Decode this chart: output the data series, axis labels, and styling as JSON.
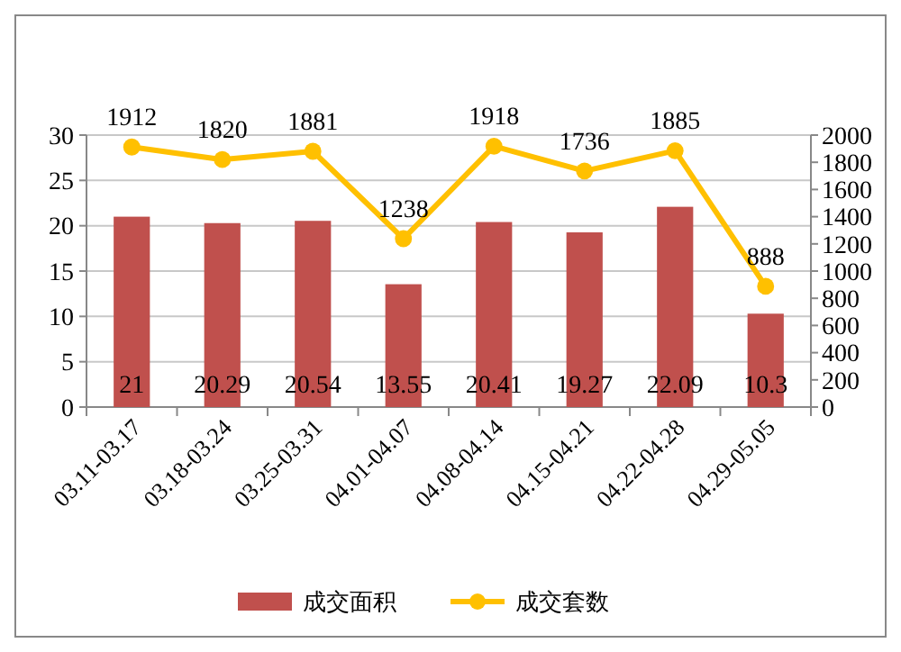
{
  "chart_data": {
    "type": "bar",
    "categories": [
      "03.11-03.17",
      "03.18-03.24",
      "03.25-03.31",
      "04.01-04.07",
      "04.08-04.14",
      "04.15-04.21",
      "04.22-04.28",
      "04.29-05.05"
    ],
    "series": [
      {
        "name": "成交面积",
        "color": "#c0504d",
        "values": [
          21,
          20.29,
          20.54,
          13.55,
          20.41,
          19.27,
          22.09,
          10.3
        ]
      },
      {
        "name": "成交套数",
        "type": "line",
        "axis": "y2",
        "color": "#ffc000",
        "values": [
          1912,
          1820,
          1881,
          1238,
          1918,
          1736,
          1885,
          888
        ]
      }
    ],
    "ylim": [
      0,
      30
    ],
    "yticks": [
      0,
      5,
      10,
      15,
      20,
      25,
      30
    ],
    "y2lim": [
      0,
      2000
    ],
    "y2ticks": [
      0,
      200,
      400,
      600,
      800,
      1000,
      1200,
      1400,
      1600,
      1800,
      2000
    ],
    "grid": "y",
    "legend": "bottom",
    "marker": "circle",
    "line_style": "solid",
    "data_labels": true
  }
}
